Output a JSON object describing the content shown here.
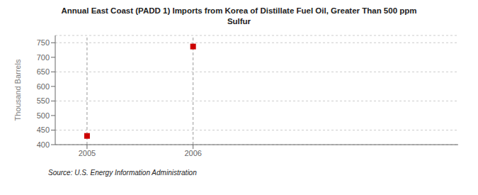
{
  "chart_data": {
    "type": "scatter",
    "title": "Annual East Coast (PADD 1) Imports from Korea of Distillate Fuel Oil, Greater Than 500 ppm\nSulfur",
    "ylabel": "Thousand Barrels",
    "source": "Source: U.S. Energy Information Administration",
    "x": [
      2005.0,
      2006.0
    ],
    "values": [
      430,
      737
    ],
    "xlim": [
      2004.7,
      2008.5
    ],
    "ylim": [
      400,
      775
    ],
    "xticks": [
      2005,
      2006
    ],
    "yticks": [
      400,
      450,
      500,
      550,
      600,
      650,
      700,
      750
    ],
    "color": "#cc0000",
    "marker": "square",
    "grid": true
  }
}
